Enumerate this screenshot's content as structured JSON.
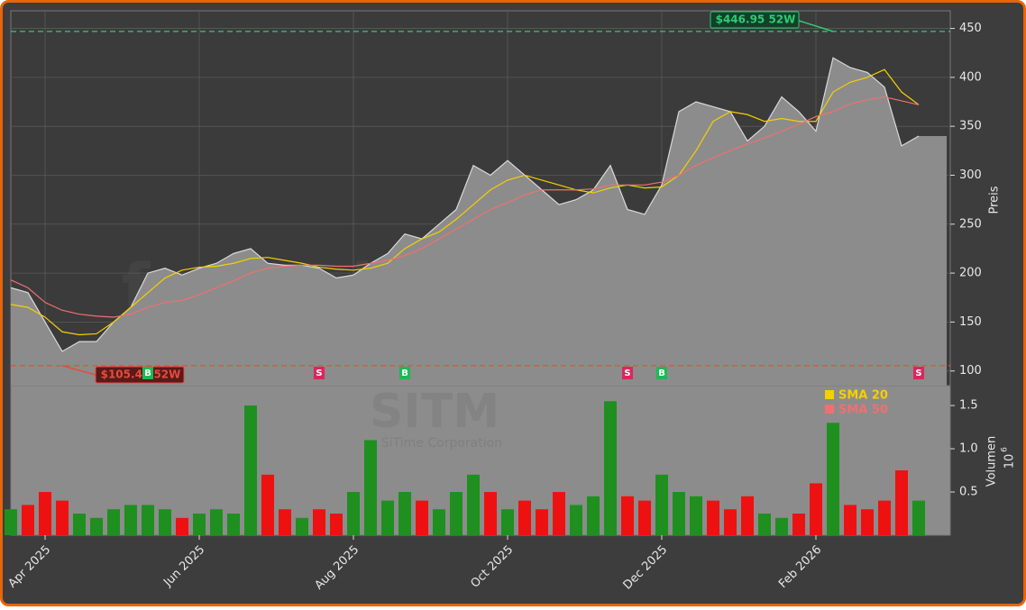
{
  "chart_data": {
    "type": "stock",
    "categories": [
      null,
      null,
      "Apr 2025",
      null,
      null,
      null,
      null,
      null,
      null,
      null,
      null,
      "Jun 2025",
      null,
      null,
      null,
      null,
      null,
      null,
      null,
      null,
      "Aug 2025",
      null,
      null,
      null,
      null,
      null,
      null,
      null,
      null,
      "Oct 2025",
      null,
      null,
      null,
      null,
      null,
      null,
      null,
      null,
      "Dec 2025",
      null,
      null,
      null,
      null,
      null,
      null,
      null,
      null,
      "Feb 2026",
      null,
      null,
      null,
      null,
      null,
      null
    ],
    "price": {
      "color": "#8c8c8c",
      "line_color": "#d9d9d9",
      "values": [
        185,
        180,
        150,
        120,
        130,
        130,
        150,
        165,
        200,
        205,
        198,
        205,
        210,
        220,
        225,
        210,
        208,
        208,
        205,
        195,
        198,
        210,
        220,
        240,
        235,
        250,
        265,
        310,
        300,
        315,
        300,
        285,
        270,
        275,
        285,
        310,
        265,
        260,
        290,
        365,
        375,
        370,
        365,
        335,
        350,
        380,
        365,
        345,
        420,
        410,
        405,
        390,
        330,
        340
      ]
    },
    "series": [
      {
        "name": "SMA 20",
        "color": "#f5d000",
        "values": [
          168,
          165,
          155,
          140,
          137,
          138,
          150,
          165,
          180,
          195,
          203,
          206,
          207,
          210,
          215,
          216,
          213,
          210,
          206,
          204,
          203,
          205,
          210,
          225,
          235,
          242,
          255,
          270,
          285,
          295,
          300,
          295,
          290,
          285,
          282,
          287,
          290,
          287,
          288,
          300,
          325,
          355,
          365,
          362,
          355,
          358,
          355,
          355,
          385,
          395,
          400,
          408,
          385,
          372
        ]
      },
      {
        "name": "SMA 50",
        "color": "#f07070",
        "values": [
          193,
          185,
          170,
          162,
          158,
          156,
          155,
          158,
          165,
          170,
          172,
          178,
          185,
          192,
          200,
          205,
          207,
          208,
          208,
          207,
          207,
          210,
          213,
          218,
          225,
          235,
          245,
          255,
          265,
          272,
          280,
          285,
          285,
          285,
          286,
          290,
          290,
          290,
          293,
          300,
          310,
          318,
          325,
          332,
          338,
          345,
          352,
          360,
          365,
          373,
          377,
          380,
          376,
          372
        ]
      }
    ],
    "ylim": [
      85,
      468
    ],
    "yticks": [
      100,
      150,
      200,
      250,
      300,
      350,
      400,
      450
    ],
    "y_label": "Preis",
    "grid": true,
    "annotations": [
      {
        "label": "$446.95 52W",
        "value": 446.95,
        "index": 48,
        "color": "#2ecc71"
      },
      {
        "label": "$105.40 52W",
        "value": 105.4,
        "index": 3,
        "color": "#e74c3c"
      }
    ],
    "signals": [
      {
        "label": "B",
        "index": 8,
        "color": "#1db954"
      },
      {
        "label": "S",
        "index": 18,
        "color": "#e0245e"
      },
      {
        "label": "B",
        "index": 23,
        "color": "#1db954"
      },
      {
        "label": "S",
        "index": 36,
        "color": "#e0245e"
      },
      {
        "label": "B",
        "index": 38,
        "color": "#1db954"
      },
      {
        "label": "S",
        "index": 53,
        "color": "#e0245e"
      }
    ],
    "volume": {
      "up_color": "#1f8f1f",
      "down_color": "#ee1111",
      "label": "Volumen",
      "exponent_base": "10",
      "exponent_power": "6",
      "values": [
        0.3,
        0.35,
        0.5,
        0.4,
        0.25,
        0.2,
        0.3,
        0.35,
        0.35,
        0.3,
        0.2,
        0.25,
        0.3,
        0.25,
        1.5,
        0.7,
        0.3,
        0.2,
        0.3,
        0.25,
        0.5,
        1.1,
        0.4,
        0.5,
        0.4,
        0.3,
        0.5,
        0.7,
        0.5,
        0.3,
        0.4,
        0.3,
        0.5,
        0.35,
        0.45,
        1.55,
        0.45,
        0.4,
        0.7,
        0.5,
        0.45,
        0.4,
        0.3,
        0.45,
        0.25,
        0.2,
        0.25,
        0.6,
        1.3,
        0.35,
        0.3,
        0.4,
        0.75,
        0.4
      ],
      "ylim": [
        0,
        1.73
      ],
      "yticks": [
        0.5,
        {
          "value": 1,
          "label": "1.0"
        },
        1.5
      ]
    },
    "watermarks": [
      "forexsignale.trade",
      "SITM",
      "SiTime Corporation"
    ]
  }
}
